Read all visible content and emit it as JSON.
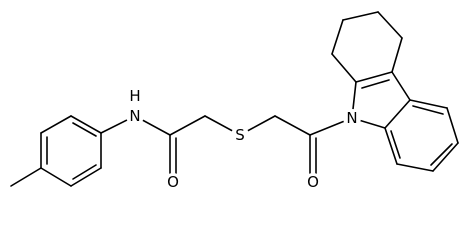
{
  "atoms": [
    "H",
    "N",
    "O",
    "S",
    "O",
    "N"
  ]
}
